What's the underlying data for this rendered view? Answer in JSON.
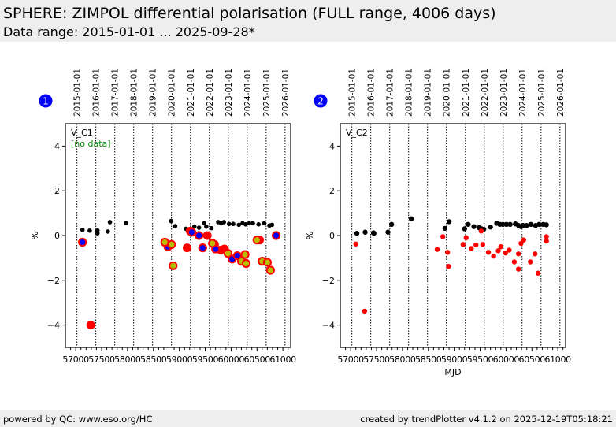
{
  "header": {
    "title": "SPHERE: ZIMPOL differential polarisation (FULL range, 4006 days)",
    "subtitle": "Data range: 2015-01-01 ... 2025-09-28*"
  },
  "footer": {
    "left": "powered by QC: www.eso.org/HC",
    "right": "created by trendPlotter v4.1.2 on 2025-12-19T05:18:21"
  },
  "colors": {
    "black_points": "#000000",
    "red_points": "#ff0000",
    "blue_points": "#0000ff",
    "olive_points": "#bbbb00",
    "no_data_text": "#008800",
    "badge": "#0000ff",
    "header_bg": "#eeeeee"
  },
  "chart_data": [
    {
      "type": "scatter",
      "badge": "1",
      "panel_label": "V_C1",
      "annotation": "[no data]",
      "xlabel": "",
      "ylabel": "%",
      "xlim": [
        56800,
        61150
      ],
      "ylim": [
        -5,
        5
      ],
      "xticks": [
        57000,
        57500,
        58000,
        58500,
        59000,
        59500,
        60000,
        60500,
        61000
      ],
      "xtick_labels": [
        "57000",
        "57500",
        "58000",
        "58500",
        "59000",
        "59500",
        "60000",
        "60500",
        "61000"
      ],
      "yticks": [
        -4,
        -2,
        0,
        2,
        4
      ],
      "ytick_labels": [
        "−4",
        "−2",
        "0",
        "2",
        "4"
      ],
      "top_axis_dates": [
        "2015-01-01",
        "2016-01-01",
        "2017-01-01",
        "2018-01-01",
        "2019-01-01",
        "2020-01-01",
        "2021-01-01",
        "2022-01-01",
        "2023-01-01",
        "2024-01-01",
        "2025-01-01",
        "2026-01-01"
      ],
      "top_axis_mjd": [
        57023,
        57388,
        57754,
        58119,
        58484,
        58849,
        59215,
        59580,
        59945,
        60310,
        60676,
        61041
      ],
      "grid": "vertical dotted at year boundaries",
      "series": [
        {
          "name": "black",
          "marker": "small-dot",
          "color": "#000000",
          "points": [
            [
              57130,
              0.25
            ],
            [
              57270,
              0.22
            ],
            [
              57420,
              0.22
            ],
            [
              57420,
              0.1
            ],
            [
              57620,
              0.18
            ],
            [
              57660,
              0.6
            ],
            [
              57970,
              0.56
            ],
            [
              58840,
              0.65
            ],
            [
              58920,
              0.42
            ],
            [
              59130,
              0.3
            ],
            [
              59180,
              0.27
            ],
            [
              59290,
              0.4
            ],
            [
              59380,
              0.35
            ],
            [
              59480,
              0.55
            ],
            [
              59520,
              0.4
            ],
            [
              59620,
              0.33
            ],
            [
              59750,
              0.6
            ],
            [
              59810,
              0.55
            ],
            [
              59860,
              0.6
            ],
            [
              59960,
              0.52
            ],
            [
              60040,
              0.52
            ],
            [
              60150,
              0.48
            ],
            [
              60220,
              0.55
            ],
            [
              60280,
              0.5
            ],
            [
              60350,
              0.55
            ],
            [
              60420,
              0.55
            ],
            [
              60530,
              0.5
            ],
            [
              60640,
              0.55
            ],
            [
              60740,
              0.45
            ],
            [
              60790,
              0.48
            ]
          ]
        },
        {
          "name": "red-large",
          "marker": "large-dot",
          "color": "#ff0000",
          "points": [
            [
              57290,
              -4.0
            ],
            [
              59150,
              -0.55
            ],
            [
              59210,
              0.2
            ],
            [
              59540,
              0.0
            ],
            [
              59680,
              -0.4
            ],
            [
              59800,
              -0.65
            ],
            [
              59870,
              -0.6
            ],
            [
              60550,
              -0.2
            ]
          ]
        },
        {
          "name": "blue-red-ring",
          "marker": "ring",
          "color": "#0000ff",
          "edge": "#ff0000",
          "points": [
            [
              57130,
              -0.3
            ],
            [
              58780,
              -0.5
            ],
            [
              59240,
              0.15
            ],
            [
              59380,
              0.0
            ],
            [
              59450,
              -0.55
            ],
            [
              59700,
              -0.6
            ],
            [
              60020,
              -1.05
            ],
            [
              60120,
              -0.9
            ],
            [
              60870,
              0.0
            ]
          ]
        },
        {
          "name": "olive-red-ring",
          "marker": "ring",
          "color": "#bbbb00",
          "edge": "#ff0000",
          "points": [
            [
              58720,
              -0.3
            ],
            [
              58850,
              -0.4
            ],
            [
              58880,
              -1.35
            ],
            [
              59640,
              -0.35
            ],
            [
              59940,
              -0.8
            ],
            [
              60200,
              -1.15
            ],
            [
              60270,
              -0.85
            ],
            [
              60290,
              -1.25
            ],
            [
              60500,
              -0.2
            ],
            [
              60600,
              -1.15
            ],
            [
              60700,
              -1.2
            ],
            [
              60760,
              -1.55
            ]
          ]
        }
      ]
    },
    {
      "type": "scatter",
      "badge": "2",
      "panel_label": "V_C2",
      "annotation": "",
      "xlabel": "MJD",
      "ylabel": "%",
      "xlim": [
        56800,
        61150
      ],
      "ylim": [
        -5,
        5
      ],
      "xticks": [
        57000,
        57500,
        58000,
        58500,
        59000,
        59500,
        60000,
        60500,
        61000
      ],
      "xtick_labels": [
        "57000",
        "57500",
        "58000",
        "58500",
        "59000",
        "59500",
        "60000",
        "60500",
        "61000"
      ],
      "yticks": [
        -4,
        -2,
        0,
        2,
        4
      ],
      "ytick_labels": [
        "−4",
        "−2",
        "0",
        "2",
        "4"
      ],
      "top_axis_dates": [
        "2015-01-01",
        "2016-01-01",
        "2017-01-01",
        "2018-01-01",
        "2019-01-01",
        "2020-01-01",
        "2021-01-01",
        "2022-01-01",
        "2023-01-01",
        "2024-01-01",
        "2025-01-01",
        "2026-01-01"
      ],
      "top_axis_mjd": [
        57023,
        57388,
        57754,
        58119,
        58484,
        58849,
        59215,
        59580,
        59945,
        60310,
        60676,
        61041
      ],
      "grid": "vertical dotted at year boundaries",
      "series": [
        {
          "name": "black",
          "marker": "dot",
          "color": "#000000",
          "points": [
            [
              57120,
              0.1
            ],
            [
              57280,
              0.15
            ],
            [
              57440,
              0.12
            ],
            [
              57450,
              0.1
            ],
            [
              57720,
              0.15
            ],
            [
              57790,
              0.5
            ],
            [
              58170,
              0.75
            ],
            [
              58820,
              0.32
            ],
            [
              58900,
              0.62
            ],
            [
              59200,
              0.3
            ],
            [
              59270,
              0.5
            ],
            [
              59380,
              0.4
            ],
            [
              59480,
              0.35
            ],
            [
              59530,
              0.3
            ],
            [
              59570,
              0.28
            ],
            [
              59700,
              0.38
            ],
            [
              59820,
              0.55
            ],
            [
              59880,
              0.5
            ],
            [
              59940,
              0.5
            ],
            [
              60010,
              0.5
            ],
            [
              60080,
              0.5
            ],
            [
              60180,
              0.52
            ],
            [
              60240,
              0.45
            ],
            [
              60290,
              0.4
            ],
            [
              60330,
              0.45
            ],
            [
              60400,
              0.45
            ],
            [
              60480,
              0.5
            ],
            [
              60570,
              0.45
            ],
            [
              60640,
              0.5
            ],
            [
              60720,
              0.5
            ],
            [
              60780,
              0.48
            ]
          ]
        },
        {
          "name": "red",
          "marker": "dot",
          "color": "#ff0000",
          "points": [
            [
              57100,
              -0.38
            ],
            [
              57270,
              -3.38
            ],
            [
              58670,
              -0.62
            ],
            [
              58780,
              -0.05
            ],
            [
              58870,
              -0.75
            ],
            [
              58890,
              -1.38
            ],
            [
              59170,
              -0.4
            ],
            [
              59230,
              -0.1
            ],
            [
              59330,
              -0.58
            ],
            [
              59420,
              -0.42
            ],
            [
              59520,
              0.2
            ],
            [
              59550,
              -0.4
            ],
            [
              59660,
              -0.75
            ],
            [
              59760,
              -0.92
            ],
            [
              59850,
              -0.68
            ],
            [
              59900,
              -0.5
            ],
            [
              59990,
              -0.78
            ],
            [
              60060,
              -0.65
            ],
            [
              60160,
              -1.18
            ],
            [
              60240,
              -1.5
            ],
            [
              60240,
              -0.82
            ],
            [
              60290,
              -0.35
            ],
            [
              60340,
              -0.2
            ],
            [
              60470,
              -1.18
            ],
            [
              60560,
              -0.82
            ],
            [
              60620,
              -1.68
            ],
            [
              60780,
              -0.05
            ],
            [
              60780,
              -0.25
            ]
          ]
        }
      ]
    }
  ]
}
